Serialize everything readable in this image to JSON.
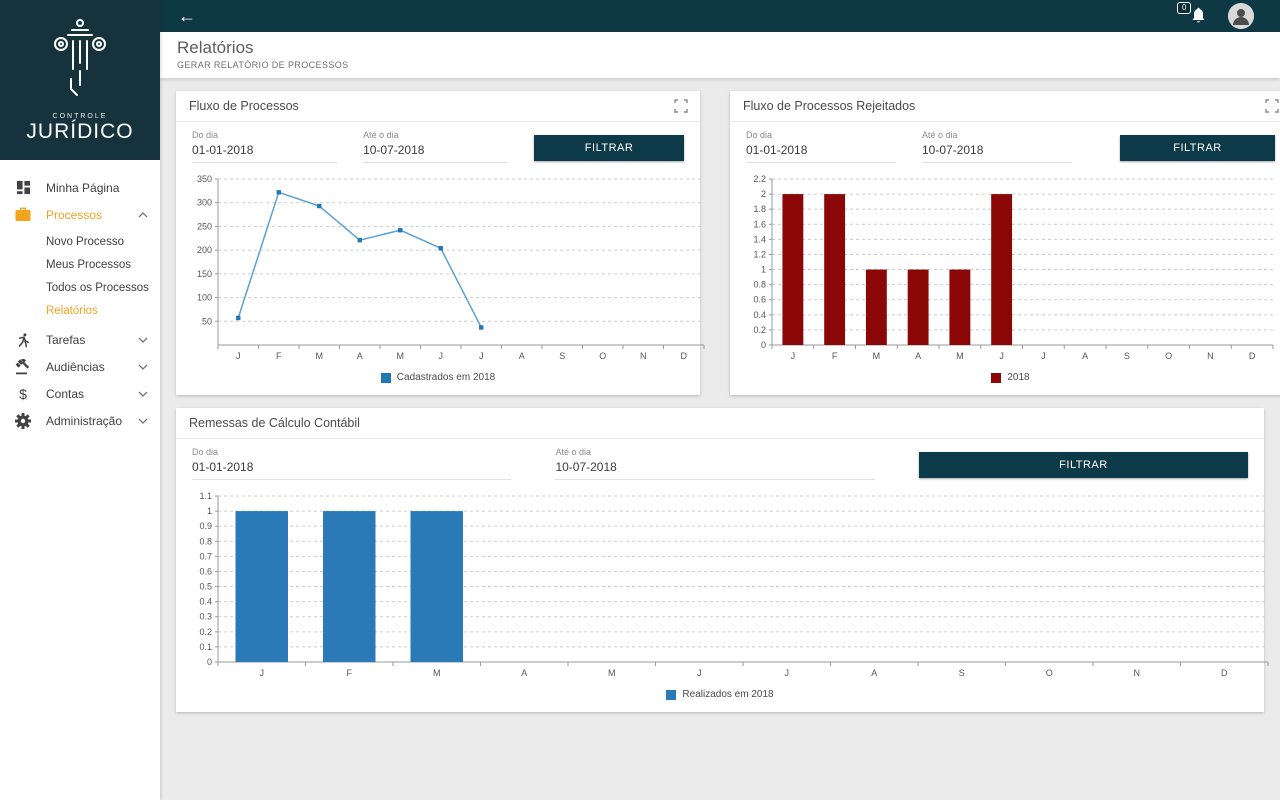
{
  "brand": {
    "name_top": "CONTROLE",
    "name_bottom": "JURÍDICO"
  },
  "topbar": {
    "back": "←",
    "badge": "0"
  },
  "header": {
    "title": "Relatórios",
    "subtitle": "GERAR RELATÓRIO DE PROCESSOS"
  },
  "sidebar": {
    "items": [
      {
        "label": "Minha Página",
        "icon": "dashboard-icon",
        "active": false
      },
      {
        "label": "Processos",
        "icon": "briefcase-icon",
        "active": true,
        "expanded": true,
        "children": [
          "Novo Processo",
          "Meus Processos",
          "Todos os Processos",
          "Relatórios"
        ],
        "active_child": "Relatórios"
      },
      {
        "label": "Tarefas",
        "icon": "runner-icon",
        "active": false
      },
      {
        "label": "Audiências",
        "icon": "gavel-icon",
        "active": false
      },
      {
        "label": "Contas",
        "icon": "dollar-icon",
        "active": false
      },
      {
        "label": "Administração",
        "icon": "gear-icon",
        "active": false
      }
    ]
  },
  "cards": [
    {
      "title": "Fluxo de Processos",
      "from_label": "Do dia",
      "from_value": "01-01-2018",
      "to_label": "Até o dia",
      "to_value": "10-07-2018",
      "button": "FILTRAR",
      "legend": "Cadastrados em 2018"
    },
    {
      "title": "Fluxo de Processos Rejeitados",
      "from_label": "Do dia",
      "from_value": "01-01-2018",
      "to_label": "Até o dia",
      "to_value": "10-07-2018",
      "button": "FILTRAR",
      "legend": "2018"
    },
    {
      "title": "Remessas de Cálculo Contábil",
      "from_label": "Do dia",
      "from_value": "01-01-2018",
      "to_label": "Até o dia",
      "to_value": "10-07-2018",
      "button": "FILTRAR",
      "legend": "Realizados em 2018"
    }
  ],
  "colors": {
    "dark_teal": "#0e3844",
    "accent_amber": "#f0a41f",
    "button": "#0c3a49",
    "line_blue": "#5ba0d6",
    "legend_blue": "#2277b5",
    "bar_red": "#8b0707",
    "bar_blue": "#2a7ab8"
  },
  "chart_data": [
    {
      "type": "line",
      "title": "Fluxo de Processos",
      "categories": [
        "J",
        "F",
        "M",
        "A",
        "M",
        "J",
        "J",
        "A",
        "S",
        "O",
        "N",
        "D"
      ],
      "series": [
        {
          "name": "Cadastrados em 2018",
          "values": [
            57,
            322,
            293,
            221,
            242,
            204,
            37,
            null,
            null,
            null,
            null,
            null
          ],
          "color": "#5ba0d6",
          "legend_color": "#2277b5"
        }
      ],
      "xlabel": "",
      "ylabel": "",
      "ylim": [
        0,
        350
      ],
      "ytick_step": 50,
      "show_zero_label": false,
      "grid": "horizontal-dashed",
      "legend_position": "bottom"
    },
    {
      "type": "bar",
      "title": "Fluxo de Processos Rejeitados",
      "categories": [
        "J",
        "F",
        "M",
        "A",
        "M",
        "J",
        "J",
        "A",
        "S",
        "O",
        "N",
        "D"
      ],
      "series": [
        {
          "name": "2018",
          "values": [
            2,
            2,
            1,
            1,
            1,
            2,
            0,
            0,
            0,
            0,
            0,
            0
          ],
          "color": "#8b0707"
        }
      ],
      "xlabel": "",
      "ylabel": "",
      "ylim": [
        0,
        2.2
      ],
      "ytick_step": 0.2,
      "show_zero_label": true,
      "bar_ratio": 0.5,
      "grid": "horizontal-dashed",
      "legend_position": "bottom"
    },
    {
      "type": "bar",
      "title": "Remessas de Cálculo Contábil",
      "categories": [
        "J",
        "F",
        "M",
        "A",
        "M",
        "J",
        "J",
        "A",
        "S",
        "O",
        "N",
        "D"
      ],
      "series": [
        {
          "name": "Realizados em 2018",
          "values": [
            1,
            1,
            1,
            0,
            0,
            0,
            0,
            0,
            0,
            0,
            0,
            0
          ],
          "color": "#2a7ab8"
        }
      ],
      "xlabel": "",
      "ylabel": "",
      "ylim": [
        0,
        1.1
      ],
      "ytick_step": 0.1,
      "show_zero_label": true,
      "bar_ratio": 0.6,
      "grid": "horizontal-dashed",
      "legend_position": "bottom"
    }
  ]
}
